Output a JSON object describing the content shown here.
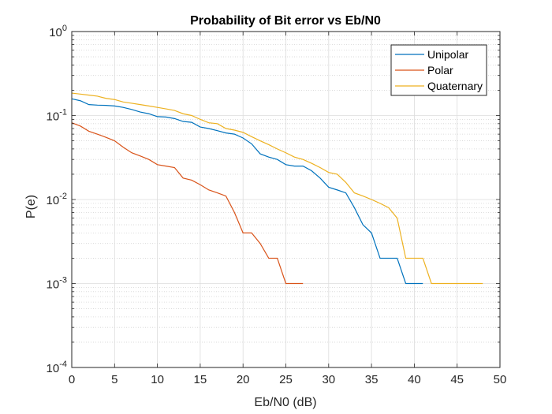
{
  "chart_data": {
    "type": "line",
    "title": "Probability of Bit error vs Eb/N0",
    "xlabel": "Eb/N0 (dB)",
    "ylabel": "P(e)",
    "xlim": [
      0,
      50
    ],
    "ylim": [
      0.0001,
      1
    ],
    "yscale": "log",
    "grid": true,
    "minor_grid": true,
    "legend_position": "top-right",
    "x_ticks": [
      0,
      5,
      10,
      15,
      20,
      25,
      30,
      35,
      40,
      45,
      50
    ],
    "y_ticks": [
      {
        "value": 1,
        "base": "10",
        "exp": "0"
      },
      {
        "value": 0.1,
        "base": "10",
        "exp": "-1"
      },
      {
        "value": 0.01,
        "base": "10",
        "exp": "-2"
      },
      {
        "value": 0.001,
        "base": "10",
        "exp": "-3"
      },
      {
        "value": 0.0001,
        "base": "10",
        "exp": "-4"
      }
    ],
    "series": [
      {
        "name": "Unipolar",
        "color": "#0072BD",
        "x": [
          0,
          1,
          2,
          3,
          4,
          5,
          6,
          7,
          8,
          9,
          10,
          11,
          12,
          13,
          14,
          15,
          16,
          17,
          18,
          19,
          20,
          21,
          22,
          23,
          24,
          25,
          26,
          27,
          28,
          29,
          30,
          31,
          32,
          33,
          34,
          35,
          36,
          37,
          38,
          39,
          40,
          41
        ],
        "y": [
          0.158,
          0.15,
          0.135,
          0.133,
          0.132,
          0.13,
          0.125,
          0.118,
          0.11,
          0.105,
          0.097,
          0.096,
          0.092,
          0.085,
          0.083,
          0.073,
          0.07,
          0.066,
          0.062,
          0.06,
          0.054,
          0.046,
          0.035,
          0.032,
          0.03,
          0.026,
          0.025,
          0.025,
          0.022,
          0.018,
          0.014,
          0.013,
          0.012,
          0.008,
          0.005,
          0.004,
          0.002,
          0.002,
          0.002,
          0.001,
          0.001,
          0.001
        ]
      },
      {
        "name": "Polar",
        "color": "#D95319",
        "x": [
          0,
          1,
          2,
          3,
          4,
          5,
          6,
          7,
          8,
          9,
          10,
          11,
          12,
          13,
          14,
          15,
          16,
          17,
          18,
          19,
          20,
          21,
          22,
          23,
          24,
          25,
          26,
          27
        ],
        "y": [
          0.082,
          0.075,
          0.065,
          0.06,
          0.055,
          0.05,
          0.042,
          0.036,
          0.033,
          0.03,
          0.026,
          0.025,
          0.024,
          0.018,
          0.017,
          0.015,
          0.013,
          0.012,
          0.011,
          0.007,
          0.004,
          0.004,
          0.003,
          0.002,
          0.002,
          0.001,
          0.001,
          0.001
        ]
      },
      {
        "name": "Quaternary",
        "color": "#EDB120",
        "x": [
          0,
          1,
          2,
          3,
          4,
          5,
          6,
          7,
          8,
          9,
          10,
          11,
          12,
          13,
          14,
          15,
          16,
          17,
          18,
          19,
          20,
          21,
          22,
          23,
          24,
          25,
          26,
          27,
          28,
          29,
          30,
          31,
          32,
          33,
          34,
          35,
          36,
          37,
          38,
          39,
          40,
          41,
          42,
          43,
          44,
          45,
          46,
          47,
          48
        ],
        "y": [
          0.185,
          0.18,
          0.175,
          0.17,
          0.16,
          0.155,
          0.145,
          0.14,
          0.135,
          0.13,
          0.125,
          0.12,
          0.115,
          0.105,
          0.1,
          0.09,
          0.082,
          0.08,
          0.07,
          0.067,
          0.063,
          0.056,
          0.05,
          0.045,
          0.04,
          0.036,
          0.032,
          0.03,
          0.027,
          0.024,
          0.021,
          0.02,
          0.016,
          0.012,
          0.011,
          0.01,
          0.009,
          0.008,
          0.006,
          0.002,
          0.002,
          0.002,
          0.001,
          0.001,
          0.001,
          0.001,
          0.001,
          0.001,
          0.001
        ]
      }
    ]
  }
}
